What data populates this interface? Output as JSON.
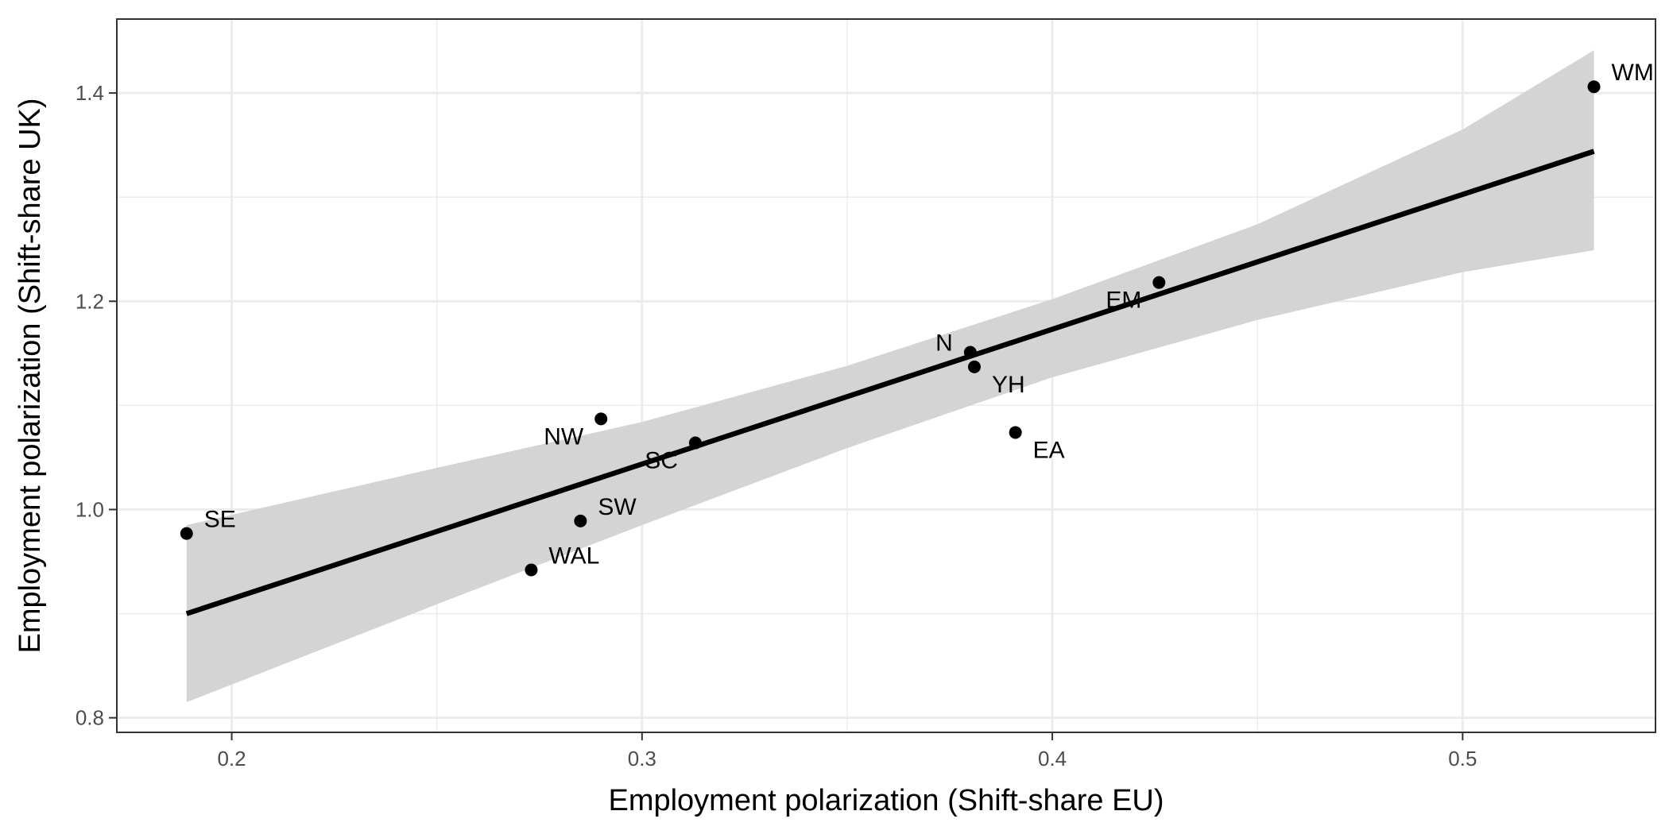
{
  "chart_data": {
    "type": "scatter",
    "title": "",
    "xlabel": "Employment polarization (Shift-share EU)",
    "ylabel": "Employment polarization (Shift-share UK)",
    "xlim": [
      0.172,
      0.547
    ],
    "ylim": [
      0.786,
      1.471
    ],
    "x_ticks": [
      {
        "value": 0.2,
        "label": "0.2"
      },
      {
        "value": 0.3,
        "label": "0.3"
      },
      {
        "value": 0.4,
        "label": "0.4"
      },
      {
        "value": 0.5,
        "label": "0.5"
      }
    ],
    "y_ticks": [
      {
        "value": 0.8,
        "label": "0.8"
      },
      {
        "value": 1.0,
        "label": "1.0"
      },
      {
        "value": 1.2,
        "label": "1.2"
      },
      {
        "value": 1.4,
        "label": "1.4"
      }
    ],
    "x_minor_ticks": [
      0.25,
      0.35,
      0.45
    ],
    "y_minor_ticks": [
      0.9,
      1.1,
      1.3
    ],
    "grid": true,
    "legend": "none",
    "colors": {
      "points": "#000000",
      "fit_line": "#000000",
      "confidence_band": "#d4d4d4",
      "grid": "#ebebeb",
      "panel_border": "#333333"
    },
    "points": [
      {
        "label": "SE",
        "x": 0.189,
        "y": 0.977,
        "label_anchor": "right-above"
      },
      {
        "label": "WAL",
        "x": 0.273,
        "y": 0.942,
        "label_anchor": "right-above"
      },
      {
        "label": "SW",
        "x": 0.285,
        "y": 0.989,
        "label_anchor": "right-above"
      },
      {
        "label": "NW",
        "x": 0.29,
        "y": 1.087,
        "label_anchor": "left-below"
      },
      {
        "label": "SC",
        "x": 0.313,
        "y": 1.064,
        "label_anchor": "left-below"
      },
      {
        "label": "N",
        "x": 0.38,
        "y": 1.151,
        "label_anchor": "left-above"
      },
      {
        "label": "YH",
        "x": 0.381,
        "y": 1.137,
        "label_anchor": "right-below"
      },
      {
        "label": "EA",
        "x": 0.391,
        "y": 1.074,
        "label_anchor": "right-below"
      },
      {
        "label": "EM",
        "x": 0.426,
        "y": 1.218,
        "label_anchor": "left-below"
      },
      {
        "label": "WM",
        "x": 0.532,
        "y": 1.406,
        "label_anchor": "right-above"
      }
    ],
    "fit_line": {
      "method": "linear",
      "x": [
        0.189,
        0.532
      ],
      "y": [
        0.9,
        1.344
      ]
    },
    "confidence_band": {
      "x": [
        0.189,
        0.25,
        0.3,
        0.35,
        0.4,
        0.45,
        0.5,
        0.532
      ],
      "lower": [
        0.815,
        0.909,
        0.985,
        1.059,
        1.127,
        1.182,
        1.228,
        1.249
      ],
      "upper": [
        0.985,
        1.04,
        1.084,
        1.138,
        1.202,
        1.274,
        1.365,
        1.441
      ]
    }
  }
}
